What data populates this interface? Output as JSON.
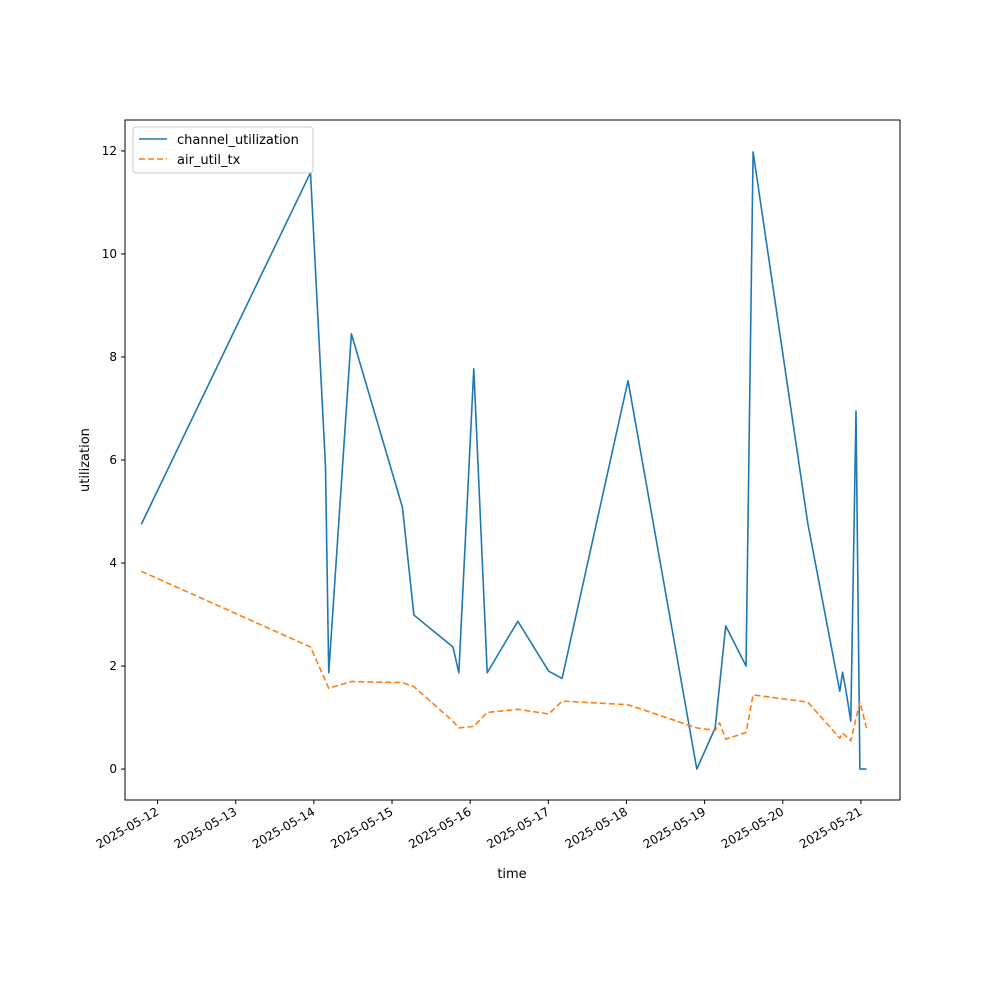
{
  "chart_data": {
    "type": "line",
    "title": "",
    "xlabel": "time",
    "ylabel": "utilization",
    "x_type": "date",
    "xlim": [
      "2025-05-11T14:00",
      "2025-05-21T12:00"
    ],
    "ylim": [
      -0.6,
      12.6
    ],
    "xticks": [
      "2025-05-12",
      "2025-05-13",
      "2025-05-14",
      "2025-05-15",
      "2025-05-16",
      "2025-05-17",
      "2025-05-18",
      "2025-05-19",
      "2025-05-20",
      "2025-05-21"
    ],
    "yticks": [
      0,
      2,
      4,
      6,
      8,
      10,
      12
    ],
    "grid": false,
    "legend": "upper-left",
    "series": [
      {
        "name": "channel_utilization",
        "color": "#1f77b4",
        "style": "solid",
        "points": [
          {
            "x": "2025-05-11T19:00",
            "y": 4.75
          },
          {
            "x": "2025-05-13T22:58",
            "y": 11.58
          },
          {
            "x": "2025-05-14T03:34",
            "y": 5.88
          },
          {
            "x": "2025-05-14T04:34",
            "y": 1.87
          },
          {
            "x": "2025-05-14T11:31",
            "y": 8.45
          },
          {
            "x": "2025-05-15T03:12",
            "y": 5.08
          },
          {
            "x": "2025-05-15T06:43",
            "y": 2.99
          },
          {
            "x": "2025-05-15T18:43",
            "y": 2.37
          },
          {
            "x": "2025-05-15T20:31",
            "y": 1.87
          },
          {
            "x": "2025-05-16T01:07",
            "y": 7.77
          },
          {
            "x": "2025-05-16T05:14",
            "y": 1.87
          },
          {
            "x": "2025-05-16T14:38",
            "y": 2.87
          },
          {
            "x": "2025-05-17T00:07",
            "y": 1.9
          },
          {
            "x": "2025-05-17T04:14",
            "y": 1.76
          },
          {
            "x": "2025-05-18T00:29",
            "y": 7.54
          },
          {
            "x": "2025-05-18T21:36",
            "y": 0.0
          },
          {
            "x": "2025-05-19T03:14",
            "y": 0.8
          },
          {
            "x": "2025-05-19T06:29",
            "y": 2.78
          },
          {
            "x": "2025-05-19T12:43",
            "y": 2.0
          },
          {
            "x": "2025-05-19T14:53",
            "y": 11.98
          },
          {
            "x": "2025-05-20T07:41",
            "y": 4.77
          },
          {
            "x": "2025-05-20T17:31",
            "y": 1.51
          },
          {
            "x": "2025-05-20T18:22",
            "y": 1.88
          },
          {
            "x": "2025-05-20T19:19",
            "y": 1.56
          },
          {
            "x": "2025-05-20T20:53",
            "y": 0.93
          },
          {
            "x": "2025-05-20T22:29",
            "y": 6.95
          },
          {
            "x": "2025-05-20T23:41",
            "y": 0.0
          },
          {
            "x": "2025-05-21T01:43",
            "y": 0.0
          }
        ]
      },
      {
        "name": "air_util_tx",
        "color": "#ff7f0e",
        "style": "dashed",
        "points": [
          {
            "x": "2025-05-11T19:00",
            "y": 3.84
          },
          {
            "x": "2025-05-13T22:58",
            "y": 2.37
          },
          {
            "x": "2025-05-14T04:34",
            "y": 1.57
          },
          {
            "x": "2025-05-14T11:31",
            "y": 1.7
          },
          {
            "x": "2025-05-15T03:12",
            "y": 1.68
          },
          {
            "x": "2025-05-15T06:43",
            "y": 1.6
          },
          {
            "x": "2025-05-15T18:43",
            "y": 0.93
          },
          {
            "x": "2025-05-15T20:31",
            "y": 0.8
          },
          {
            "x": "2025-05-16T01:07",
            "y": 0.83
          },
          {
            "x": "2025-05-16T05:14",
            "y": 1.1
          },
          {
            "x": "2025-05-16T14:38",
            "y": 1.16
          },
          {
            "x": "2025-05-17T00:07",
            "y": 1.07
          },
          {
            "x": "2025-05-17T04:14",
            "y": 1.32
          },
          {
            "x": "2025-05-18T00:29",
            "y": 1.25
          },
          {
            "x": "2025-05-18T21:36",
            "y": 0.8
          },
          {
            "x": "2025-05-19T03:14",
            "y": 0.75
          },
          {
            "x": "2025-05-19T04:34",
            "y": 0.9
          },
          {
            "x": "2025-05-19T06:29",
            "y": 0.58
          },
          {
            "x": "2025-05-19T12:43",
            "y": 0.71
          },
          {
            "x": "2025-05-19T14:53",
            "y": 1.44
          },
          {
            "x": "2025-05-20T07:41",
            "y": 1.3
          },
          {
            "x": "2025-05-20T17:31",
            "y": 0.6
          },
          {
            "x": "2025-05-20T18:22",
            "y": 0.7
          },
          {
            "x": "2025-05-20T20:53",
            "y": 0.55
          },
          {
            "x": "2025-05-20T23:41",
            "y": 1.3
          },
          {
            "x": "2025-05-21T01:43",
            "y": 0.8
          }
        ]
      }
    ]
  }
}
